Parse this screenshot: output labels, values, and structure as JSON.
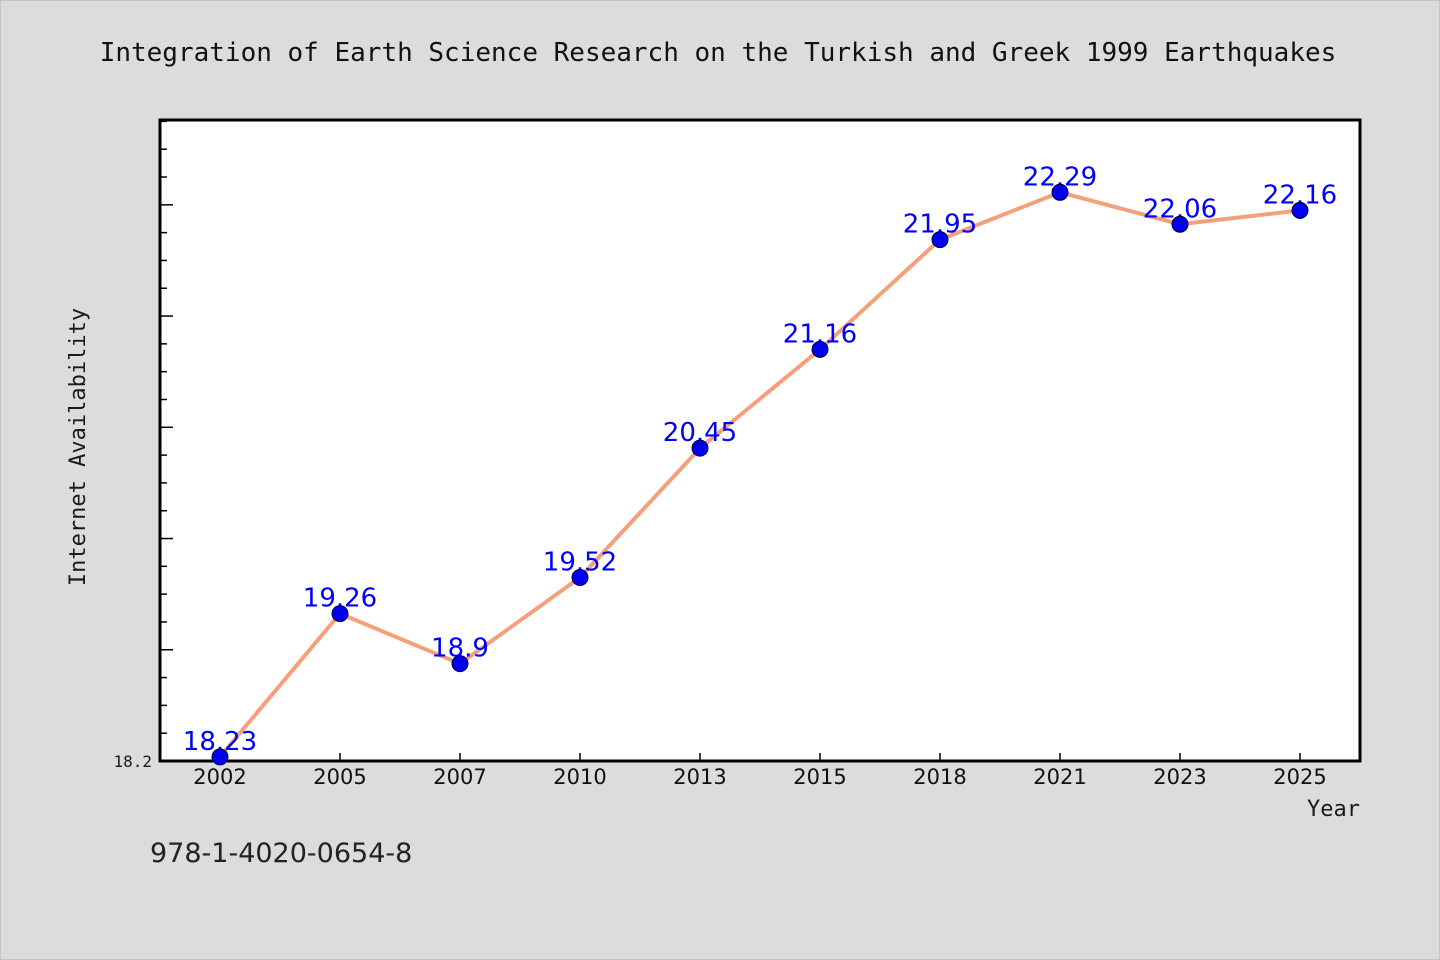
{
  "footer_text": "978-1-4020-0654-8",
  "colors": {
    "background": "#dcdcdc",
    "plot_background": "#ffffff",
    "frame": "#000000",
    "line": "#f4a07a",
    "marker_fill": "#0000ee",
    "marker_edge": "#00003a",
    "data_label": "#0000ff"
  },
  "chart_data": {
    "type": "line",
    "title": "Integration of Earth Science Research on the Turkish and Greek 1999 Earthquakes",
    "xlabel": "Year",
    "ylabel": "Internet Availability",
    "categories": [
      "2002",
      "2005",
      "2007",
      "2010",
      "2013",
      "2015",
      "2018",
      "2021",
      "2023",
      "2025"
    ],
    "values": [
      18.23,
      19.26,
      18.9,
      19.52,
      20.45,
      21.16,
      21.95,
      22.29,
      22.06,
      22.16
    ],
    "y_tick_labels": [
      "18.2"
    ],
    "ylim": [
      18.2,
      22.81
    ],
    "grid": false,
    "legend": "none",
    "data_labels": "shown above each point"
  }
}
